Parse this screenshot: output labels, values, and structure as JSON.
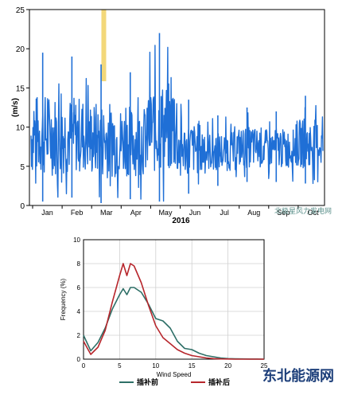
{
  "colors": {
    "series_blue": "#1f6fd6",
    "highlight_band": "#f3d87a",
    "red_series": "#b7262c",
    "green_series": "#2e6f67",
    "axis": "#000000",
    "watermark": "#5a8f8a"
  },
  "chart_data": [
    {
      "type": "line",
      "ylabel": "(m/s)",
      "xlabel": "2016",
      "ylim": [
        0,
        25
      ],
      "yticks": [
        "0",
        "5",
        "10",
        "15",
        "20",
        "25"
      ],
      "months": [
        "Jan",
        "Feb",
        "Mar",
        "Apr",
        "May",
        "Jun",
        "Jul",
        "Aug",
        "Sep",
        "Oct"
      ],
      "highlight_month_position": 2.7,
      "series": [
        {
          "values_peaks": [
            {
              "month": "Jan",
              "max": 19.5,
              "min": 0.5
            },
            {
              "month": "Feb",
              "max": 19.0,
              "min": 1.0
            },
            {
              "month": "Mar",
              "max": 18.0,
              "min": 0.3
            },
            {
              "month": "Apr",
              "max": 17.0,
              "min": 0.8
            },
            {
              "month": "May",
              "max": 22.0,
              "min": 0.5
            },
            {
              "month": "Jun",
              "max": 13.5,
              "min": 1.5
            },
            {
              "month": "Jul",
              "max": 11.5,
              "min": 2.5
            },
            {
              "month": "Aug",
              "max": 12.5,
              "min": 3.0
            },
            {
              "month": "Sep",
              "max": 12.0,
              "min": 3.0
            },
            {
              "month": "Oct",
              "max": 14.0,
              "min": 2.8
            }
          ]
        }
      ],
      "watermark": "北极星风力发电网"
    },
    {
      "type": "line",
      "xlabel": "Wind Speed",
      "ylabel": "Frequency (%)",
      "xlim": [
        0,
        25
      ],
      "ylim": [
        0,
        10
      ],
      "xticks": [
        "0",
        "5",
        "10",
        "15",
        "20",
        "25"
      ],
      "yticks": [
        "0",
        "2",
        "4",
        "6",
        "8",
        "10"
      ],
      "x": [
        0,
        1,
        2,
        3,
        4,
        5,
        5.5,
        6,
        6.5,
        7,
        8,
        9,
        10,
        11,
        12,
        13,
        14,
        15,
        16,
        17,
        18,
        19,
        20,
        21,
        22,
        23,
        24,
        25
      ],
      "series": [
        {
          "name": "插补前",
          "values": [
            2.0,
            0.7,
            1.4,
            2.6,
            4.2,
            5.4,
            5.9,
            5.4,
            6.0,
            6.0,
            5.6,
            4.6,
            3.4,
            3.2,
            2.6,
            1.5,
            0.9,
            0.8,
            0.5,
            0.3,
            0.2,
            0.1,
            0.05,
            0.03,
            0.02,
            0.01,
            0.01,
            0.0
          ]
        },
        {
          "name": "插补后",
          "values": [
            1.5,
            0.4,
            1.0,
            2.4,
            4.8,
            7.0,
            8.0,
            7.0,
            8.0,
            7.8,
            6.4,
            4.5,
            2.8,
            1.8,
            1.3,
            0.8,
            0.5,
            0.3,
            0.2,
            0.1,
            0.05,
            0.02,
            0.01,
            0.0,
            0.0,
            0.0,
            0.0,
            0.0
          ]
        }
      ],
      "legend_position": "bottom"
    }
  ],
  "watermark_bottom": "东北能源网"
}
